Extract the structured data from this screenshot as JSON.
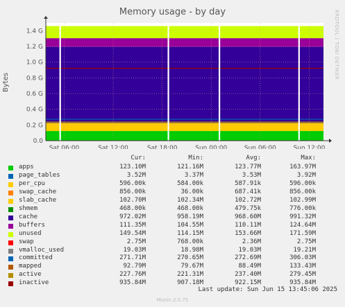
{
  "title": "Memory usage - by day",
  "watermark": "RRDTOOL / TOBI OETIKER",
  "ylabel": "Bytes",
  "legend_headers": {
    "cur": "Cur:",
    "min": "Min:",
    "avg": "Avg:",
    "max": "Max:"
  },
  "legend": [
    {
      "name": "apps",
      "color": "#00cc00",
      "cur": "123.10M",
      "min": "121.16M",
      "avg": "123.77M",
      "max": "163.97M"
    },
    {
      "name": "page_tables",
      "color": "#0066b3",
      "cur": "3.52M",
      "min": "3.37M",
      "avg": "3.53M",
      "max": "3.92M"
    },
    {
      "name": "per_cpu",
      "color": "#ffcc00",
      "cur": "596.00k",
      "min": "584.00k",
      "avg": "587.91k",
      "max": "596.00k"
    },
    {
      "name": "swap_cache",
      "color": "#ff8000",
      "cur": "856.00k",
      "min": "36.00k",
      "avg": "687.41k",
      "max": "856.00k"
    },
    {
      "name": "slab_cache",
      "color": "#ffcc00",
      "cur": "102.70M",
      "min": "102.34M",
      "avg": "102.72M",
      "max": "102.99M"
    },
    {
      "name": "shmem",
      "color": "#008f00",
      "cur": "468.00k",
      "min": "468.00k",
      "avg": "479.75k",
      "max": "776.00k"
    },
    {
      "name": "cache",
      "color": "#330099",
      "cur": "972.02M",
      "min": "958.19M",
      "avg": "968.60M",
      "max": "991.32M"
    },
    {
      "name": "buffers",
      "color": "#990099",
      "cur": "111.35M",
      "min": "104.55M",
      "avg": "110.11M",
      "max": "124.64M"
    },
    {
      "name": "unused",
      "color": "#ccff00",
      "cur": "149.54M",
      "min": "114.15M",
      "avg": "153.66M",
      "max": "171.59M"
    },
    {
      "name": "swap",
      "color": "#ff0000",
      "cur": "2.75M",
      "min": "768.00k",
      "avg": "2.36M",
      "max": "2.75M"
    },
    {
      "name": "vmalloc_used",
      "color": "#808080",
      "cur": "19.03M",
      "min": "18.98M",
      "avg": "19.03M",
      "max": "19.21M"
    },
    {
      "name": "committed",
      "color": "#0066b3",
      "cur": "271.71M",
      "min": "270.65M",
      "avg": "272.69M",
      "max": "306.03M"
    },
    {
      "name": "mapped",
      "color": "#b35a00",
      "cur": "92.79M",
      "min": "79.67M",
      "avg": "88.49M",
      "max": "133.43M"
    },
    {
      "name": "active",
      "color": "#b38f00",
      "cur": "227.76M",
      "min": "221.31M",
      "avg": "237.40M",
      "max": "279.45M"
    },
    {
      "name": "inactive",
      "color": "#990000",
      "cur": "935.84M",
      "min": "907.18M",
      "avg": "922.15M",
      "max": "935.84M"
    }
  ],
  "footer": "Last update:  Sun Jun 15 13:45:06 2025",
  "munin": "Munin 2.0.75",
  "chart_data": {
    "type": "area",
    "title": "Memory usage - by day",
    "ylabel": "Bytes",
    "ylim": [
      0,
      1.5
    ],
    "yunit": "G",
    "yticks": [
      0,
      0.2,
      0.4,
      0.6,
      0.8,
      1.0,
      1.2,
      1.4
    ],
    "ytick_labels": [
      "0.0",
      "0.2 G",
      "0.4 G",
      "0.6 G",
      "0.8 G",
      "1.0 G",
      "1.2 G",
      "1.4 G"
    ],
    "xticks": [
      "Sat 06:00",
      "Sat 12:00",
      "Sat 18:00",
      "Sun 00:00",
      "Sun 06:00",
      "Sun 12:00"
    ],
    "xtick_hours": [
      6,
      12,
      18,
      24,
      30,
      36
    ],
    "xlim_hours": [
      3.75,
      37.75
    ],
    "stacked_gb": [
      {
        "name": "apps",
        "value": 0.123
      },
      {
        "name": "slab_cache",
        "value": 0.103
      },
      {
        "name": "cache",
        "value": 0.969
      },
      {
        "name": "buffers",
        "value": 0.11
      },
      {
        "name": "unused",
        "value": 0.154
      }
    ],
    "lines_gb": [
      {
        "name": "committed",
        "value": 0.273
      },
      {
        "name": "active",
        "value": 0.237
      },
      {
        "name": "inactive",
        "value": 0.922
      }
    ],
    "gaps_hours": [
      5.5,
      18.75,
      25,
      34.75
    ],
    "grid": true
  }
}
